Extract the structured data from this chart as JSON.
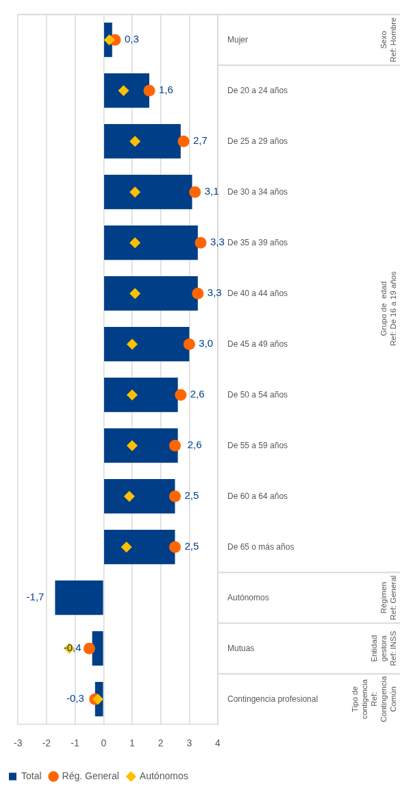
{
  "chart_data": {
    "type": "bar",
    "orientation": "horizontal",
    "categories": [
      "Mujer",
      "De 20 a 24 años",
      "De 25 a 29 años",
      "De 30 a 34 años",
      "De 35 a 39 años",
      "De 40 a 44 años",
      "De 45 a 49 años",
      "De 50 a 54 años",
      "De 55 a 59 años",
      "De 60 a 64 años",
      "De 65 o más años",
      "Autónomos",
      "Mutuas",
      "Contingencia profesional"
    ],
    "series": [
      {
        "name": "Total",
        "color": "#003f87",
        "values": [
          0.3,
          1.6,
          2.7,
          3.1,
          3.3,
          3.3,
          3.0,
          2.6,
          2.6,
          2.5,
          2.5,
          -1.7,
          -0.4,
          -0.3
        ],
        "value_labels": [
          "0,3",
          "1,6",
          "2,7",
          "3,1",
          "3,3",
          "3,3",
          "3,0",
          "2,6",
          "2,6",
          "2,5",
          "2,5",
          "-1,7",
          "-0,4",
          "-0,3"
        ]
      },
      {
        "name": "Rég. General",
        "type": "scatter",
        "marker": "circle",
        "color": "#ff6600",
        "values": [
          0.4,
          1.6,
          2.8,
          3.2,
          3.4,
          3.3,
          3.0,
          2.7,
          2.5,
          2.5,
          2.5,
          null,
          -0.5,
          -0.3
        ]
      },
      {
        "name": "Autónomos",
        "type": "scatter",
        "marker": "diamond",
        "color": "#ffc000",
        "values": [
          0.2,
          0.7,
          1.1,
          1.1,
          1.1,
          1.1,
          1.0,
          1.0,
          1.0,
          0.9,
          0.8,
          null,
          -1.2,
          -0.2
        ]
      }
    ],
    "xlim": [
      -3,
      4
    ],
    "xticks": [
      -3,
      -2,
      -1,
      0,
      1,
      2,
      3,
      4
    ],
    "grid": "x",
    "legend": "bottom left",
    "annotations": [
      "Sexo\nRef: Hombre",
      "Grupo de  edad\nRef: De 16 a 19 años",
      "Régimen\nRef: General",
      "Entidad gestora\nRef: INSS",
      "Tipo de contigencia\nRef: Contingencia Común"
    ]
  }
}
